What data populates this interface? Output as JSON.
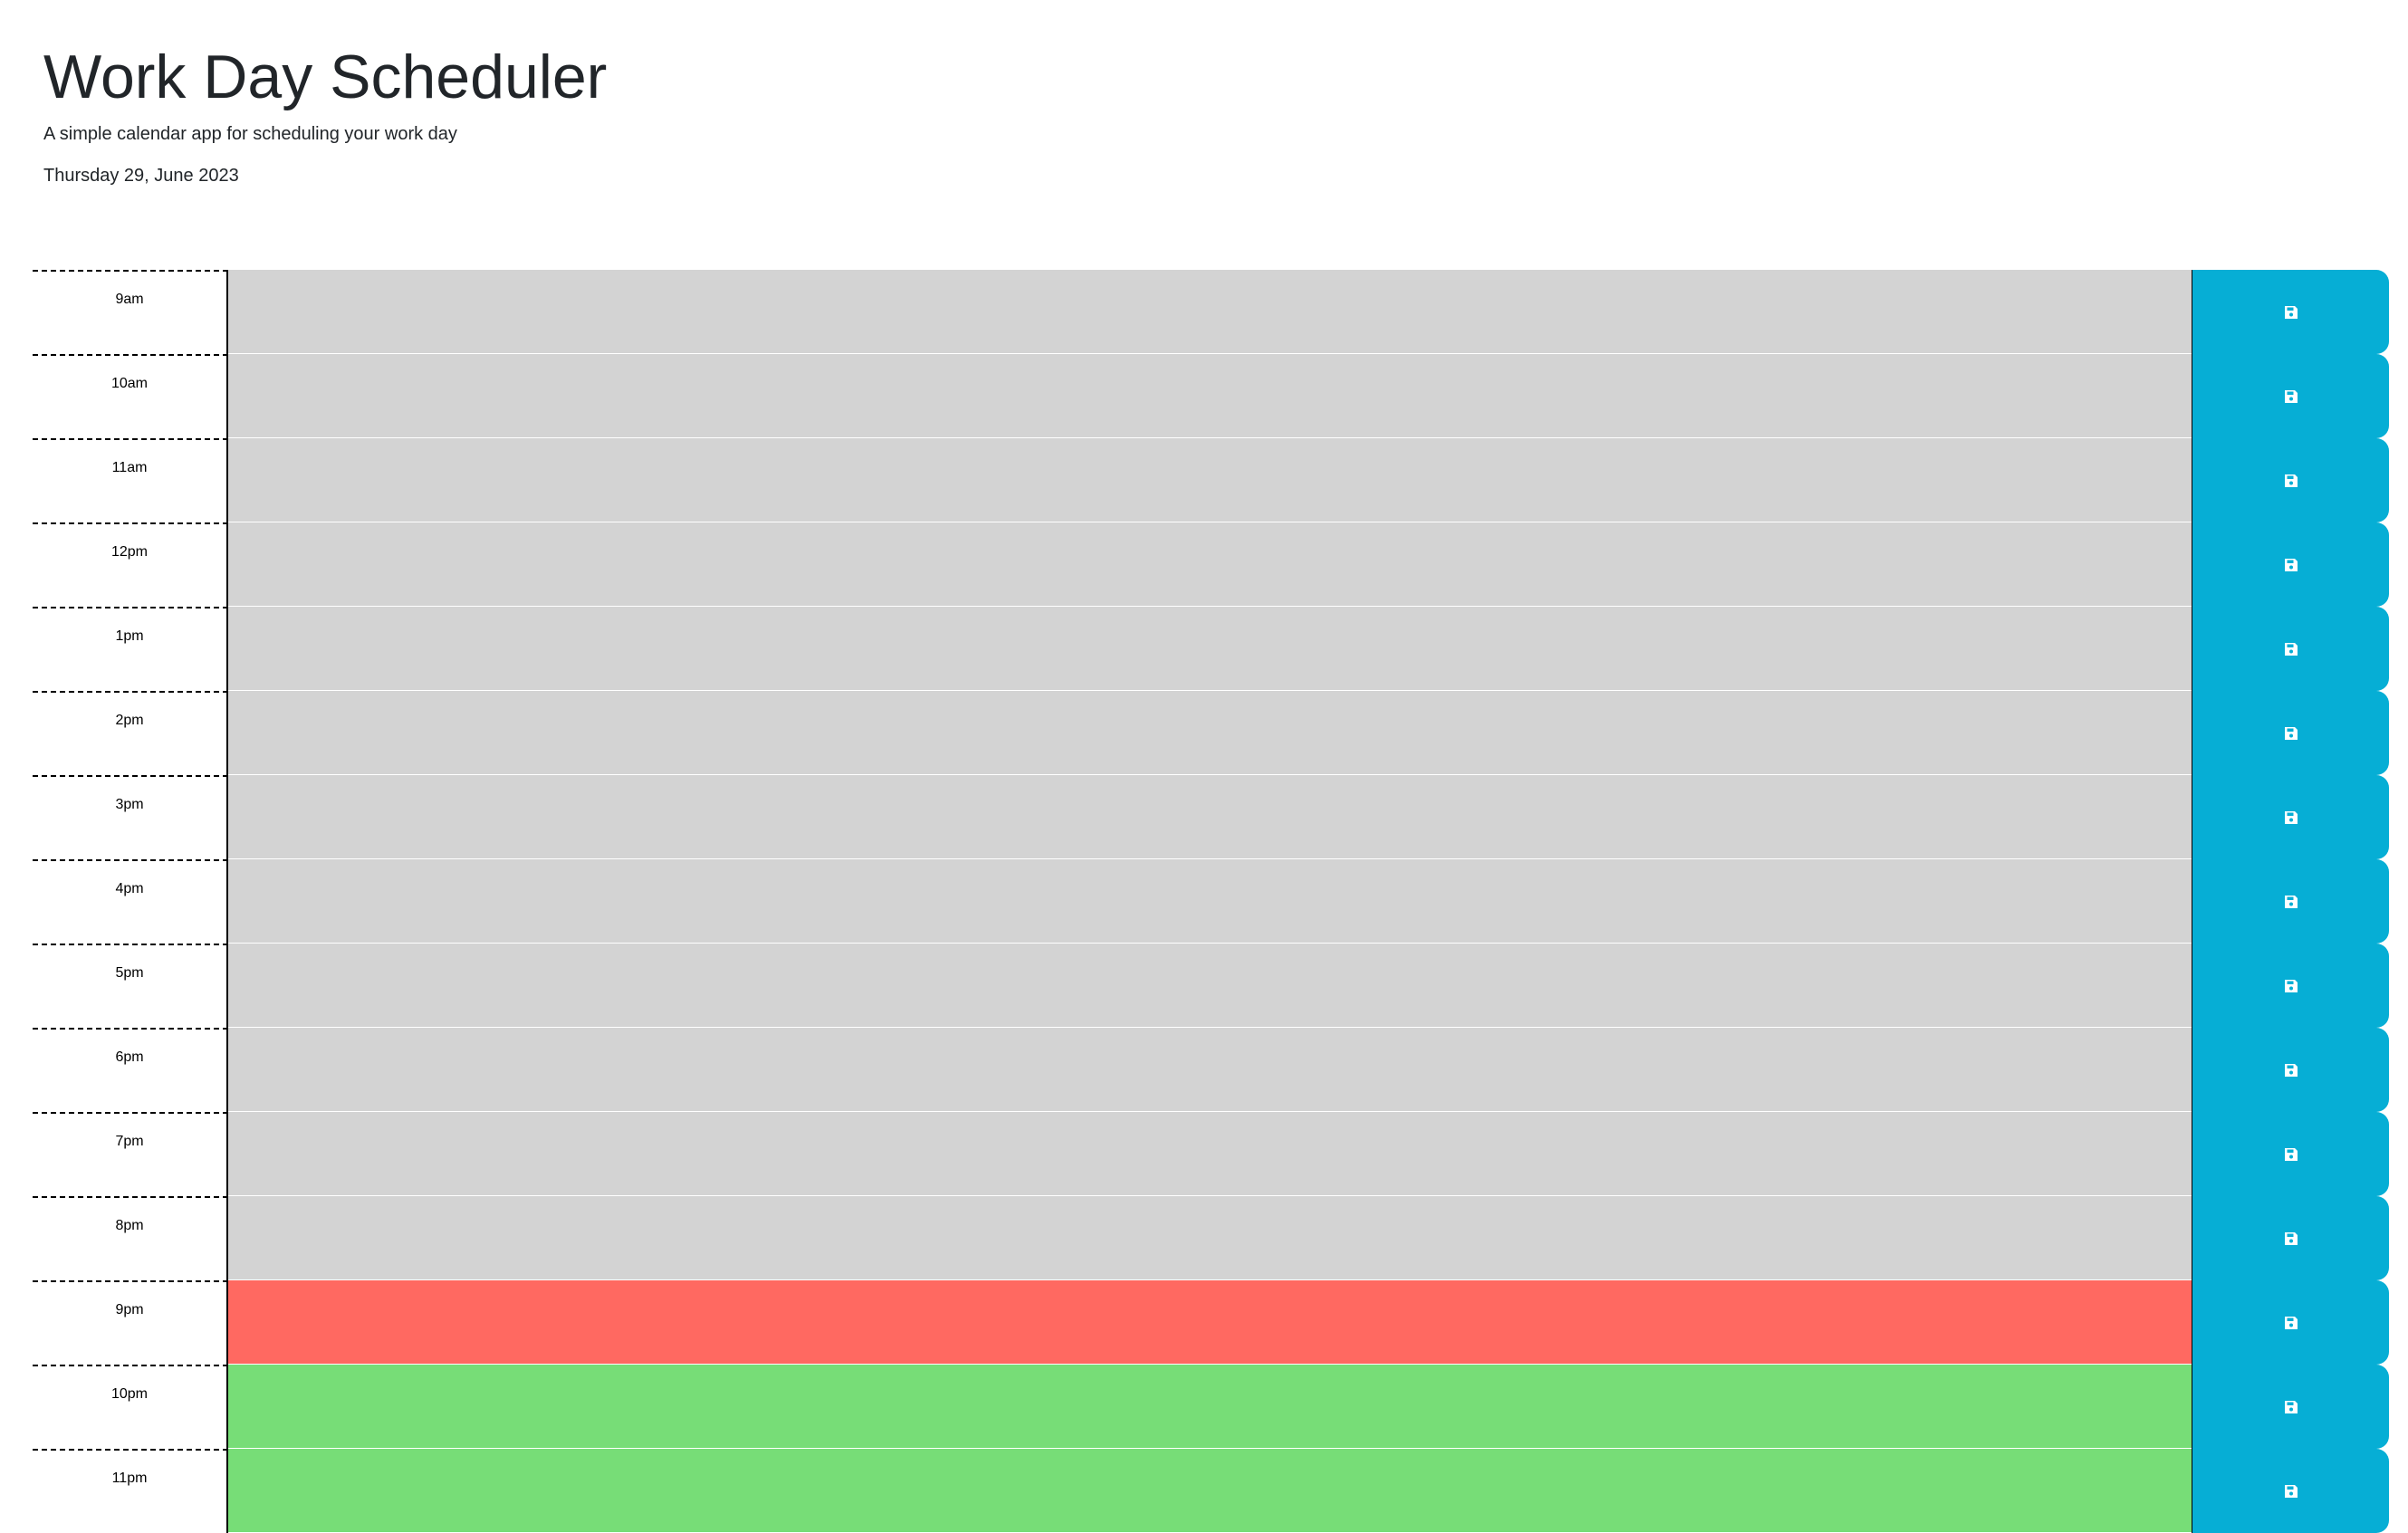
{
  "header": {
    "title": "Work Day Scheduler",
    "subtitle": "A simple calendar app for scheduling your work day",
    "current_day": "Thursday 29, June 2023"
  },
  "colors": {
    "past": "#d3d3d3",
    "present": "#ff6961",
    "future": "#77dd77",
    "save_button": "#06aed5"
  },
  "time_blocks": [
    {
      "hour": "9am",
      "status": "past",
      "text": "",
      "icon": "save-icon"
    },
    {
      "hour": "10am",
      "status": "past",
      "text": "",
      "icon": "save-icon"
    },
    {
      "hour": "11am",
      "status": "past",
      "text": "",
      "icon": "save-icon"
    },
    {
      "hour": "12pm",
      "status": "past",
      "text": "",
      "icon": "save-icon"
    },
    {
      "hour": "1pm",
      "status": "past",
      "text": "",
      "icon": "save-icon"
    },
    {
      "hour": "2pm",
      "status": "past",
      "text": "",
      "icon": "save-icon"
    },
    {
      "hour": "3pm",
      "status": "past",
      "text": "",
      "icon": "save-icon"
    },
    {
      "hour": "4pm",
      "status": "past",
      "text": "",
      "icon": "save-icon"
    },
    {
      "hour": "5pm",
      "status": "past",
      "text": "",
      "icon": "save-icon"
    },
    {
      "hour": "6pm",
      "status": "past",
      "text": "",
      "icon": "save-icon"
    },
    {
      "hour": "7pm",
      "status": "past",
      "text": "",
      "icon": "save-icon"
    },
    {
      "hour": "8pm",
      "status": "past",
      "text": "",
      "icon": "save-icon"
    },
    {
      "hour": "9pm",
      "status": "present",
      "text": "",
      "icon": "save-icon"
    },
    {
      "hour": "10pm",
      "status": "future",
      "text": "",
      "icon": "save-icon"
    },
    {
      "hour": "11pm",
      "status": "future",
      "text": "",
      "icon": "save-icon"
    }
  ]
}
